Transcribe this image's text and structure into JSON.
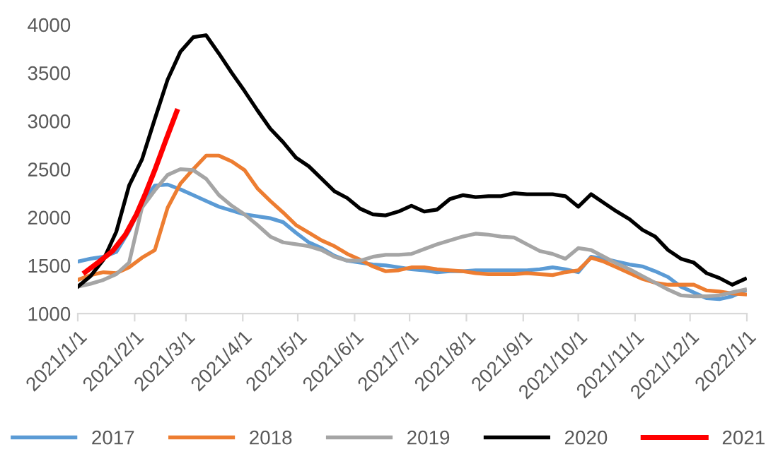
{
  "chart_data": {
    "type": "line",
    "x": [
      "2021-01-01",
      "2021-01-08",
      "2021-01-15",
      "2021-01-22",
      "2021-01-29",
      "2021-02-05",
      "2021-02-12",
      "2021-02-19",
      "2021-02-26",
      "2021-03-05",
      "2021-03-12",
      "2021-03-19",
      "2021-03-26",
      "2021-04-02",
      "2021-04-09",
      "2021-04-16",
      "2021-04-23",
      "2021-04-30",
      "2021-05-07",
      "2021-05-14",
      "2021-05-21",
      "2021-05-28",
      "2021-06-04",
      "2021-06-11",
      "2021-06-18",
      "2021-06-25",
      "2021-07-02",
      "2021-07-09",
      "2021-07-16",
      "2021-07-23",
      "2021-07-30",
      "2021-08-06",
      "2021-08-13",
      "2021-08-20",
      "2021-08-27",
      "2021-09-03",
      "2021-09-10",
      "2021-09-17",
      "2021-09-24",
      "2021-10-01",
      "2021-10-08",
      "2021-10-15",
      "2021-10-22",
      "2021-10-29",
      "2021-11-05",
      "2021-11-12",
      "2021-11-19",
      "2021-11-26",
      "2021-12-03",
      "2021-12-10",
      "2021-12-17",
      "2021-12-24",
      "2021-12-31"
    ],
    "series": [
      {
        "name": "2017",
        "color": "#5b9bd5",
        "values": [
          1540,
          1570,
          1590,
          1640,
          1860,
          2150,
          2330,
          2340,
          2290,
          2230,
          2170,
          2110,
          2070,
          2030,
          2010,
          1990,
          1950,
          1840,
          1740,
          1680,
          1600,
          1550,
          1530,
          1510,
          1500,
          1480,
          1460,
          1450,
          1430,
          1440,
          1440,
          1450,
          1450,
          1450,
          1450,
          1450,
          1460,
          1480,
          1460,
          1430,
          1590,
          1570,
          1540,
          1510,
          1490,
          1440,
          1380,
          1280,
          1220,
          1160,
          1150,
          1180,
          1240
        ]
      },
      {
        "name": "2018",
        "color": "#ed7d31",
        "values": [
          1350,
          1400,
          1430,
          1420,
          1480,
          1580,
          1660,
          2100,
          2350,
          2500,
          2640,
          2640,
          2580,
          2490,
          2300,
          2170,
          2050,
          1920,
          1840,
          1760,
          1700,
          1620,
          1560,
          1490,
          1440,
          1450,
          1480,
          1480,
          1460,
          1450,
          1440,
          1420,
          1410,
          1410,
          1410,
          1420,
          1410,
          1400,
          1430,
          1450,
          1580,
          1540,
          1480,
          1420,
          1360,
          1320,
          1300,
          1300,
          1300,
          1240,
          1230,
          1210,
          1200
        ]
      },
      {
        "name": "2019",
        "color": "#a5a5a5",
        "values": [
          1280,
          1310,
          1350,
          1410,
          1530,
          2100,
          2280,
          2440,
          2500,
          2490,
          2400,
          2230,
          2120,
          2030,
          1920,
          1800,
          1740,
          1720,
          1700,
          1660,
          1590,
          1550,
          1550,
          1590,
          1610,
          1610,
          1620,
          1670,
          1720,
          1760,
          1800,
          1830,
          1820,
          1800,
          1790,
          1720,
          1650,
          1620,
          1570,
          1680,
          1660,
          1590,
          1520,
          1460,
          1390,
          1320,
          1250,
          1190,
          1180,
          1180,
          1190,
          1220,
          1250
        ]
      },
      {
        "name": "2020",
        "color": "#000000",
        "values": [
          1280,
          1390,
          1560,
          1850,
          2330,
          2600,
          3020,
          3430,
          3720,
          3870,
          3890,
          3700,
          3500,
          3310,
          3110,
          2920,
          2780,
          2620,
          2530,
          2400,
          2270,
          2200,
          2090,
          2030,
          2020,
          2060,
          2120,
          2060,
          2080,
          2190,
          2230,
          2210,
          2220,
          2220,
          2250,
          2240,
          2240,
          2240,
          2220,
          2110,
          2240,
          2150,
          2060,
          1980,
          1870,
          1800,
          1660,
          1570,
          1530,
          1420,
          1370,
          1300,
          1360
        ]
      },
      {
        "name": "2021",
        "color": "#ff0000",
        "x": [
          "2021-01-05",
          "2021-01-12",
          "2021-01-20",
          "2021-01-27",
          "2021-02-02",
          "2021-02-07",
          "2021-02-12",
          "2021-02-18",
          "2021-02-24"
        ],
        "values": [
          1430,
          1530,
          1650,
          1820,
          2030,
          2250,
          2490,
          2800,
          3100
        ]
      }
    ],
    "ylim": [
      1000,
      4000
    ],
    "yticks": [
      1000,
      1500,
      2000,
      2500,
      3000,
      3500,
      4000
    ],
    "xlim": [
      "2021-01-01",
      "2022-01-01"
    ],
    "xticks": [
      {
        "value": "2021-01-01",
        "label": "2021/1/1"
      },
      {
        "value": "2021-02-01",
        "label": "2021/2/1"
      },
      {
        "value": "2021-03-01",
        "label": "2021/3/1"
      },
      {
        "value": "2021-04-01",
        "label": "2021/4/1"
      },
      {
        "value": "2021-05-01",
        "label": "2021/5/1"
      },
      {
        "value": "2021-06-01",
        "label": "2021/6/1"
      },
      {
        "value": "2021-07-01",
        "label": "2021/7/1"
      },
      {
        "value": "2021-08-01",
        "label": "2021/8/1"
      },
      {
        "value": "2021-09-01",
        "label": "2021/9/1"
      },
      {
        "value": "2021-10-01",
        "label": "2021/10/1"
      },
      {
        "value": "2021-11-01",
        "label": "2021/11/1"
      },
      {
        "value": "2021-12-01",
        "label": "2021/12/1"
      },
      {
        "value": "2022-01-01",
        "label": "2022/1/1"
      }
    ],
    "legend": "bottom",
    "line_style": "solid"
  }
}
